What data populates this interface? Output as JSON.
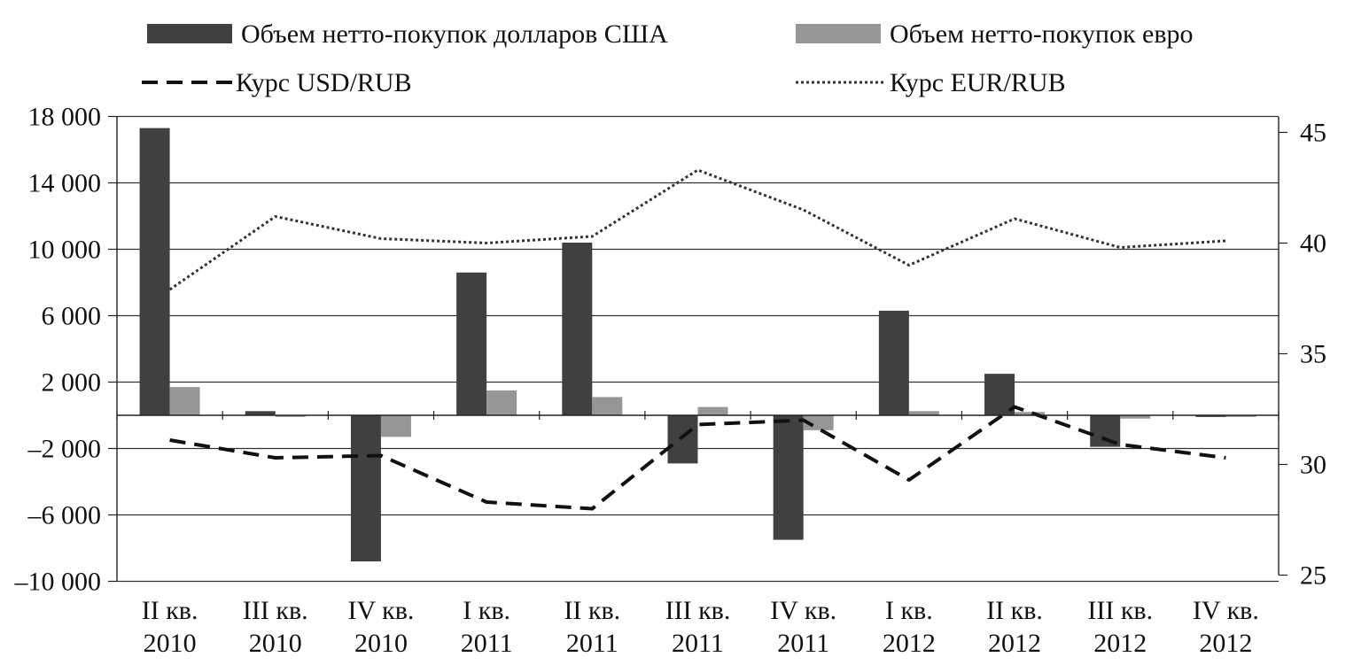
{
  "chart_data": {
    "type": "bar",
    "categories": [
      [
        "II кв.",
        "2010"
      ],
      [
        "III кв.",
        "2010"
      ],
      [
        "IV кв.",
        "2010"
      ],
      [
        "I кв.",
        "2011"
      ],
      [
        "II кв.",
        "2011"
      ],
      [
        "III кв.",
        "2011"
      ],
      [
        "IV кв.",
        "2011"
      ],
      [
        "I кв.",
        "2012"
      ],
      [
        "II кв.",
        "2012"
      ],
      [
        "III кв.",
        "2012"
      ],
      [
        "IV кв.",
        "2012"
      ]
    ],
    "series": [
      {
        "name": "Объем нетто-покупок долларов США",
        "kind": "bar",
        "axis": "left",
        "color": "#404040",
        "values": [
          17300,
          250,
          -8800,
          8600,
          10400,
          -2900,
          -7500,
          6300,
          2500,
          -1900,
          -100
        ]
      },
      {
        "name": "Объем нетто-покупок евро",
        "kind": "bar",
        "axis": "left",
        "color": "#969696",
        "values": [
          1700,
          -100,
          -1300,
          1500,
          1100,
          500,
          -900,
          250,
          200,
          -200,
          -100
        ]
      },
      {
        "name": "Курс USD/RUB",
        "kind": "line",
        "style": "dashed",
        "axis": "right",
        "color": "#111111",
        "values": [
          31.1,
          30.3,
          30.4,
          28.3,
          28.0,
          31.8,
          32.0,
          29.3,
          32.6,
          30.9,
          30.3
        ]
      },
      {
        "name": "Курс EUR/RUB",
        "kind": "line",
        "style": "dotted",
        "axis": "right",
        "color": "#333333",
        "values": [
          37.9,
          41.2,
          40.2,
          40.0,
          40.3,
          43.3,
          41.5,
          39.0,
          41.1,
          39.8,
          40.1
        ]
      }
    ],
    "yaxis_left": {
      "ticks": [
        18000,
        14000,
        10000,
        6000,
        2000,
        -2000,
        -6000,
        -10000
      ],
      "tick_labels": [
        "18 000",
        "14 000",
        "10 000",
        "6 000",
        "2 000",
        "–2 000",
        "–6 000",
        "–10 000"
      ],
      "range": [
        -10000,
        18000
      ]
    },
    "yaxis_right": {
      "ticks": [
        45,
        40,
        35,
        30,
        25
      ],
      "tick_labels": [
        "45",
        "40",
        "35",
        "30",
        "25"
      ],
      "range": [
        25,
        45.7
      ]
    },
    "grid": true,
    "legend": "top"
  }
}
